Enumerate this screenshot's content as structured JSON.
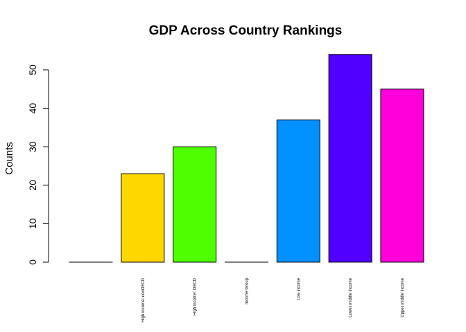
{
  "chart_data": {
    "type": "bar",
    "title": "GDP Across Country Rankings",
    "xlabel": "",
    "ylabel": "Counts",
    "categories": [
      "",
      "High income: nonOECD",
      "High income: OECD",
      "Income Group",
      "Low income",
      "Lower middle income",
      "Upper middle income"
    ],
    "values": [
      0,
      23,
      30,
      0,
      37,
      54,
      45
    ],
    "colors": [
      "#FF0000",
      "#FFD700",
      "#4DFF00",
      "#00FFB2",
      "#0091FF",
      "#4F00FF",
      "#FF00DB"
    ],
    "ylim": [
      0,
      54
    ],
    "yticks": [
      0,
      10,
      20,
      30,
      40,
      50
    ],
    "grid": false,
    "legend": "none"
  }
}
